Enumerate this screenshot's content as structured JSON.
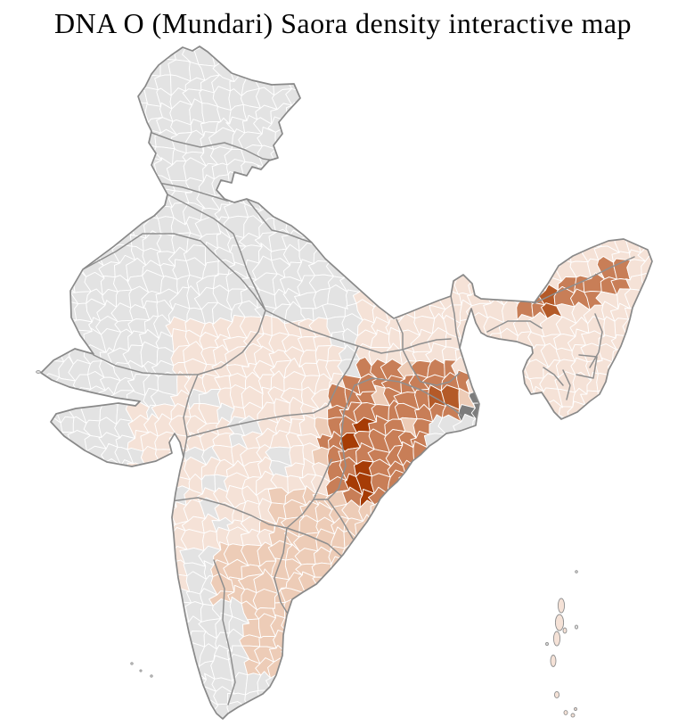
{
  "title": "DNA O (Mundari) Saora density interactive map",
  "map": {
    "palette": {
      "background": "#ffffff",
      "no_data": "#e3e3e3",
      "density_very_low": "#f5e2d7",
      "density_low": "#edccb7",
      "density_medium": "#c87e57",
      "density_medium_high": "#b45a28",
      "density_high": "#a63c06",
      "excluded_area": "#7c7c7c",
      "district_border": "#ffffff",
      "state_border": "#8f8f8f",
      "coast_outline": "#898989",
      "island_outline": "#909090"
    }
  }
}
